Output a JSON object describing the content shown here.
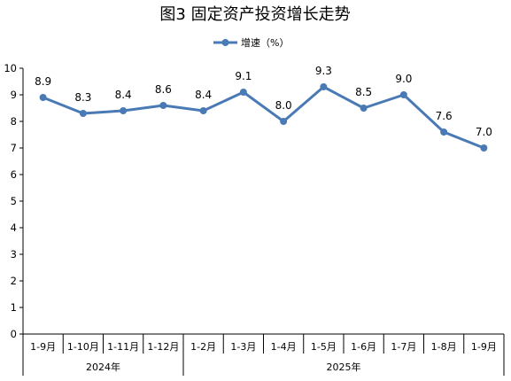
{
  "chart_data": {
    "type": "line",
    "title": "图3  固定资产投资增长走势",
    "series": [
      {
        "name": "增速（%）",
        "values": [
          8.9,
          8.3,
          8.4,
          8.6,
          8.4,
          9.1,
          8.0,
          9.3,
          8.5,
          9.0,
          7.6,
          7.0
        ]
      }
    ],
    "categories": [
      "1-9月",
      "1-10月",
      "1-11月",
      "1-12月",
      "1-2月",
      "1-3月",
      "1-4月",
      "1-5月",
      "1-6月",
      "1-7月",
      "1-8月",
      "1-9月"
    ],
    "data_labels": [
      "8.9",
      "8.3",
      "8.4",
      "8.6",
      "8.4",
      "9.1",
      "8.0",
      "9.3",
      "8.5",
      "9.0",
      "7.6",
      "7.0"
    ],
    "year_groups": [
      {
        "label": "2024年",
        "count": 4
      },
      {
        "label": "2025年",
        "count": 8
      }
    ],
    "yticks": [
      "0",
      "1",
      "2",
      "3",
      "4",
      "5",
      "6",
      "7",
      "8",
      "9",
      "10"
    ],
    "ylim": [
      0,
      10
    ],
    "grid": false,
    "legend_position": "top-center",
    "colors": {
      "series": "#4a7ab5",
      "axis": "#000000"
    }
  }
}
